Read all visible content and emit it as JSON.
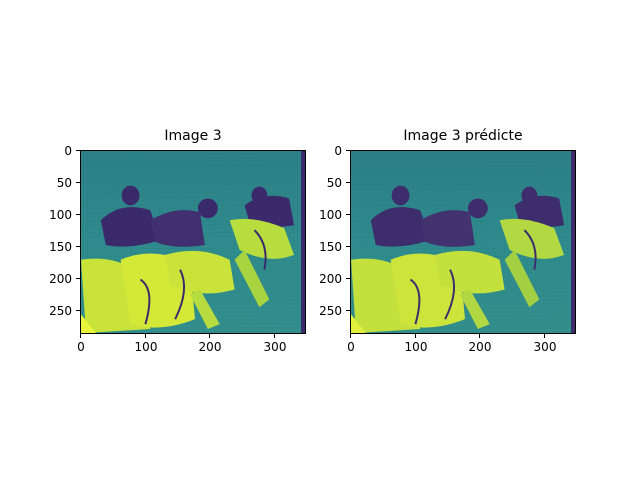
{
  "panels": [
    {
      "title": "Image 3",
      "x_ticks": [
        "0",
        "100",
        "200",
        "300"
      ],
      "y_ticks": [
        "0",
        "50",
        "100",
        "150",
        "200",
        "250"
      ]
    },
    {
      "title": "Image 3 prédicte",
      "x_ticks": [
        "0",
        "100",
        "200",
        "300"
      ],
      "y_ticks": [
        "0",
        "50",
        "100",
        "150",
        "200",
        "250"
      ]
    }
  ],
  "colormap": {
    "name": "viridis",
    "dark": "#3b2a6b",
    "mid": "#2c7f8e",
    "light": "#c9e33a",
    "bright": "#e8f53a"
  },
  "image_description_icon": "football-lineup-image"
}
